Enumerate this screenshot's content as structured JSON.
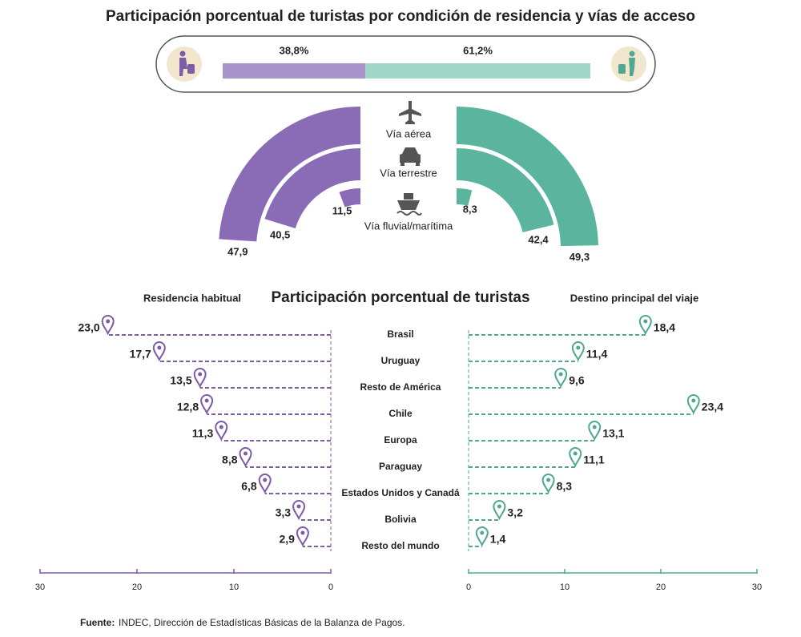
{
  "title": "Participación porcentual de turistas por condición de residencia y vías de acceso",
  "source_label": "Fuente:",
  "source_text": "INDEC, Dirección de Estadísticas Básicas de la Balanza de Pagos.",
  "chart_data": [
    {
      "type": "stacked_bar",
      "values": [
        38.8,
        61.2
      ],
      "value_labels": [
        "38,8%",
        "61,2%"
      ],
      "colors": [
        "#a993cb",
        "#9fd6c6"
      ],
      "label_colors": [
        "#7d5ba6",
        "#4fa88f"
      ],
      "xlim": [
        0,
        100
      ]
    },
    {
      "type": "radial_bar",
      "categories": [
        "Vía aérea",
        "Vía terrestre",
        "Vía fluvial/marítima"
      ],
      "series": [
        {
          "color": "#8a6bb5",
          "values": [
            47.9,
            40.5,
            11.5
          ],
          "value_labels": [
            "47,9",
            "40,5",
            "11,5"
          ]
        },
        {
          "color": "#5bb59e",
          "values": [
            49.3,
            42.4,
            8.3
          ],
          "value_labels": [
            "49,3",
            "42,4",
            "8,3"
          ]
        }
      ]
    },
    {
      "type": "lollipop",
      "title": "Participación porcentual de turistas",
      "categories": [
        "Brasil",
        "Uruguay",
        "Resto de América",
        "Chile",
        "Europa",
        "Paraguay",
        "Estados Unidos y Canadá",
        "Bolivia",
        "Resto del mundo"
      ],
      "series": [
        {
          "name": "Residencia habitual",
          "color": "#7d5ba6",
          "values": [
            23.0,
            17.7,
            13.5,
            12.8,
            11.3,
            8.8,
            6.8,
            3.3,
            2.9
          ],
          "value_labels": [
            "23,0",
            "17,7",
            "13,5",
            "12,8",
            "11,3",
            "8,8",
            "6,8",
            "3,3",
            "2,9"
          ],
          "xlim": [
            30,
            0
          ],
          "xticks": [
            30,
            20,
            10,
            0
          ]
        },
        {
          "name": "Destino principal del viaje",
          "color": "#4fa88f",
          "values": [
            18.4,
            11.4,
            9.6,
            23.4,
            13.1,
            11.1,
            8.3,
            3.2,
            1.4
          ],
          "value_labels": [
            "18,4",
            "11,4",
            "9,6",
            "23,4",
            "13,1",
            "11,1",
            "8,3",
            "3,2",
            "1,4"
          ],
          "xlim": [
            0,
            30
          ],
          "xticks": [
            0,
            10,
            20,
            30
          ]
        }
      ]
    }
  ]
}
